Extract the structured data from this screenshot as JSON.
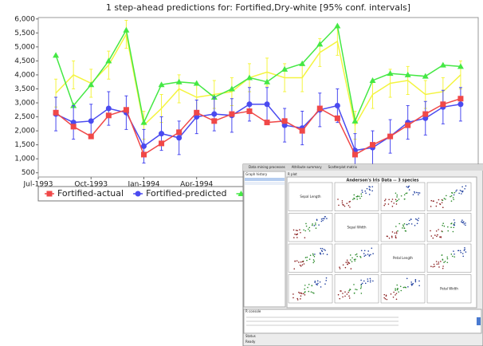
{
  "chart_data": {
    "type": "line",
    "title": "1 step-ahead predictions for: Fortified,Dry-white [95% conf. intervals]",
    "x": [
      "Aug-1993",
      "Sep-1993",
      "Oct-1993",
      "Nov-1993",
      "Dec-1993",
      "Jan-1994",
      "Feb-1994",
      "Mar-1994",
      "Apr-1994",
      "May-1994",
      "Jun-1994",
      "Jul-1994",
      "Aug-1994",
      "Sep-1994",
      "Oct-1994",
      "Nov-1994",
      "Dec-1994",
      "Jan-1995",
      "Feb-1995",
      "Mar-1995",
      "Apr-1995",
      "May-1995",
      "Jun-1995",
      "Jul-1995"
    ],
    "xlim": [
      "Jul-1993",
      "Aug-1995"
    ],
    "xticks": [
      "Jul-1993",
      "Oct-1993",
      "Jan-1994",
      "Apr-1994"
    ],
    "ylim": [
      350,
      6050
    ],
    "yticks": [
      500,
      {
        "value": 1000,
        "label": "1,000"
      },
      {
        "value": 1500,
        "label": "1,500"
      },
      {
        "value": 2000,
        "label": "2,000"
      },
      {
        "value": 2500,
        "label": "2,500"
      },
      {
        "value": 3000,
        "label": "3,000"
      },
      {
        "value": 3500,
        "label": "3,500"
      },
      {
        "value": 4000,
        "label": "4,000"
      },
      {
        "value": 4500,
        "label": "4,500"
      },
      {
        "value": 5000,
        "label": "5,000"
      },
      {
        "value": 5500,
        "label": "5,500"
      },
      {
        "value": 6000,
        "label": "6,000"
      }
    ],
    "series": [
      {
        "name": "Fortified-actual",
        "color": "#f04848",
        "marker": "square",
        "values": [
          2650,
          2150,
          1800,
          2550,
          2750,
          1150,
          1550,
          1950,
          2650,
          2350,
          2600,
          2700,
          2300,
          2350,
          2000,
          2800,
          2450,
          1150,
          1500,
          1800,
          2200,
          2600,
          2950,
          3150
        ]
      },
      {
        "name": "Fortified-predicted",
        "color": "#4a4af0",
        "marker": "circle",
        "values": [
          2600,
          2300,
          2350,
          2800,
          2650,
          1450,
          1900,
          1750,
          2500,
          2600,
          2550,
          2950,
          2950,
          2200,
          2100,
          2750,
          2900,
          1300,
          1400,
          1800,
          2300,
          2450,
          2850,
          2950
        ],
        "errors": [
          600,
          600,
          600,
          600,
          600,
          600,
          600,
          600,
          600,
          600,
          600,
          600,
          600,
          600,
          600,
          600,
          600,
          600,
          600,
          600,
          600,
          600,
          600,
          600
        ]
      },
      {
        "color": "#44e844",
        "marker": "triangle",
        "values": [
          4700,
          2900,
          3650,
          4500,
          5600,
          2300,
          3650,
          3750,
          3700,
          3200,
          3500,
          3900,
          3750,
          4200,
          4400,
          5100,
          5750,
          2350,
          3800,
          4050,
          4000,
          3950,
          4350,
          4300
        ]
      },
      {
        "color": "#f4f440",
        "marker": "none",
        "values": [
          3350,
          4000,
          3700,
          4350,
          5450,
          2200,
          2800,
          3500,
          3200,
          3300,
          3400,
          3900,
          4100,
          3900,
          3900,
          4800,
          5200,
          2200,
          3300,
          3700,
          3800,
          3300,
          3400,
          4000
        ],
        "errors": [
          500,
          500,
          500,
          500,
          500,
          500,
          500,
          500,
          500,
          500,
          500,
          500,
          500,
          500,
          500,
          500,
          500,
          500,
          500,
          500,
          500,
          500,
          500,
          500
        ]
      }
    ]
  },
  "window": {
    "tabs": [
      "Data mining processes",
      "Attribute summary",
      "Scatterplot matrix"
    ],
    "sidebar": "Graph history",
    "panel_tab": "R plot",
    "plot_title": "Anderson's Iris Data -- 3 species",
    "variables": [
      "Sepal Length",
      "Sepal Width",
      "Petal Length",
      "Petal Width"
    ],
    "console": "R console",
    "status": "Status",
    "status_text": "Ready"
  }
}
